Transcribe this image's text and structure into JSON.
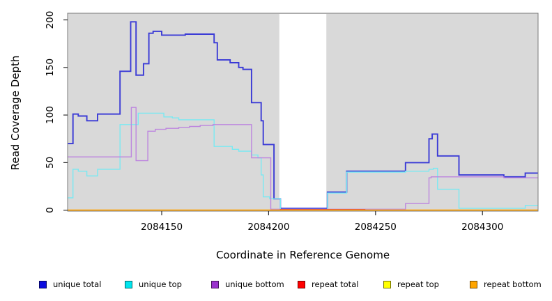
{
  "figure": {
    "x_axis_title": "Coordinate in Reference Genome",
    "y_axis_title": "Read Coverage Depth"
  },
  "chart_data": {
    "type": "line",
    "subtype": "step-coverage-plot",
    "title": "",
    "xlabel": "Coordinate in Reference Genome",
    "ylabel": "Read Coverage Depth",
    "xlim": [
      2084106,
      2084326
    ],
    "ylim": [
      -1,
      207
    ],
    "x_ticks": [
      2084150,
      2084200,
      2084250,
      2084300
    ],
    "y_ticks": [
      0,
      50,
      100,
      150,
      200
    ],
    "grid": false,
    "legend_position": "bottom",
    "plot_bg_color": "#d9d9d9",
    "masked_region": {
      "from": 2084205,
      "to": 2084227,
      "color": "#ffffff"
    },
    "series": [
      {
        "name": "unique total",
        "swatch_color": "#0d0dde",
        "line_color": "#3a3ad6",
        "line_width": 1.9,
        "points": [
          [
            2084106,
            70
          ],
          [
            2084108.5,
            101
          ],
          [
            2084111,
            99
          ],
          [
            2084115,
            94
          ],
          [
            2084120,
            101
          ],
          [
            2084130.5,
            146
          ],
          [
            2084135.5,
            198
          ],
          [
            2084138,
            142
          ],
          [
            2084141.5,
            154
          ],
          [
            2084144,
            186
          ],
          [
            2084146,
            188
          ],
          [
            2084150,
            184
          ],
          [
            2084161,
            185
          ],
          [
            2084174.5,
            176
          ],
          [
            2084176,
            158
          ],
          [
            2084182,
            155
          ],
          [
            2084186,
            150
          ],
          [
            2084188,
            148
          ],
          [
            2084192,
            113
          ],
          [
            2084196.5,
            94
          ],
          [
            2084197.5,
            69
          ],
          [
            2084202.5,
            12
          ],
          [
            2084205.5,
            2
          ],
          [
            2084227.5,
            19
          ],
          [
            2084236.5,
            41
          ],
          [
            2084264,
            50
          ],
          [
            2084275,
            75
          ],
          [
            2084276.5,
            80
          ],
          [
            2084279,
            57
          ],
          [
            2084289,
            37
          ],
          [
            2084310,
            35
          ],
          [
            2084320,
            39
          ],
          [
            2084326,
            39
          ]
        ]
      },
      {
        "name": "unique top",
        "swatch_color": "#00e5ee",
        "line_color": "#79e9f2",
        "line_width": 1.4,
        "points": [
          [
            2084106,
            13
          ],
          [
            2084108.5,
            43
          ],
          [
            2084111,
            41
          ],
          [
            2084115,
            36
          ],
          [
            2084120,
            43
          ],
          [
            2084130.5,
            90
          ],
          [
            2084139,
            102
          ],
          [
            2084151,
            98
          ],
          [
            2084155,
            97
          ],
          [
            2084158,
            95
          ],
          [
            2084174.5,
            67
          ],
          [
            2084183,
            64
          ],
          [
            2084186,
            62
          ],
          [
            2084192,
            58
          ],
          [
            2084195,
            55
          ],
          [
            2084196.5,
            37
          ],
          [
            2084197.5,
            14
          ],
          [
            2084200.5,
            12
          ],
          [
            2084205.5,
            1
          ],
          [
            2084227.5,
            18
          ],
          [
            2084236.5,
            40
          ],
          [
            2084264,
            41
          ],
          [
            2084275,
            43
          ],
          [
            2084277,
            44
          ],
          [
            2084279,
            22
          ],
          [
            2084289,
            2
          ],
          [
            2084320,
            5
          ],
          [
            2084326,
            5
          ]
        ]
      },
      {
        "name": "unique bottom",
        "swatch_color": "#9a32cd",
        "line_color": "#bd85df",
        "line_width": 1.4,
        "points": [
          [
            2084106,
            56
          ],
          [
            2084135.8,
            108
          ],
          [
            2084138,
            52
          ],
          [
            2084143.5,
            83
          ],
          [
            2084147,
            85
          ],
          [
            2084152,
            86
          ],
          [
            2084158,
            87
          ],
          [
            2084163,
            88
          ],
          [
            2084168,
            89
          ],
          [
            2084174,
            90
          ],
          [
            2084192,
            55
          ],
          [
            2084201,
            1
          ],
          [
            2084264,
            7
          ],
          [
            2084275,
            34
          ],
          [
            2084276,
            35
          ],
          [
            2084310,
            34
          ],
          [
            2084326,
            34
          ]
        ]
      },
      {
        "name": "repeat total",
        "swatch_color": "#ff0000",
        "line_color": "#dc3850",
        "line_width": 1.4,
        "points": [
          [
            2084106,
            0
          ],
          [
            2084205.5,
            0.7
          ],
          [
            2084245,
            0
          ],
          [
            2084326,
            0
          ]
        ]
      },
      {
        "name": "repeat top",
        "swatch_color": "#ffff00",
        "line_color": "#ffff00",
        "line_width": 1.4,
        "points": [
          [
            2084106,
            0
          ],
          [
            2084326,
            0
          ]
        ]
      },
      {
        "name": "repeat bottom",
        "swatch_color": "#ffa500",
        "line_color": "#ffa510",
        "line_width": 1.6,
        "points": [
          [
            2084106,
            0
          ],
          [
            2084326,
            0
          ]
        ]
      }
    ]
  }
}
